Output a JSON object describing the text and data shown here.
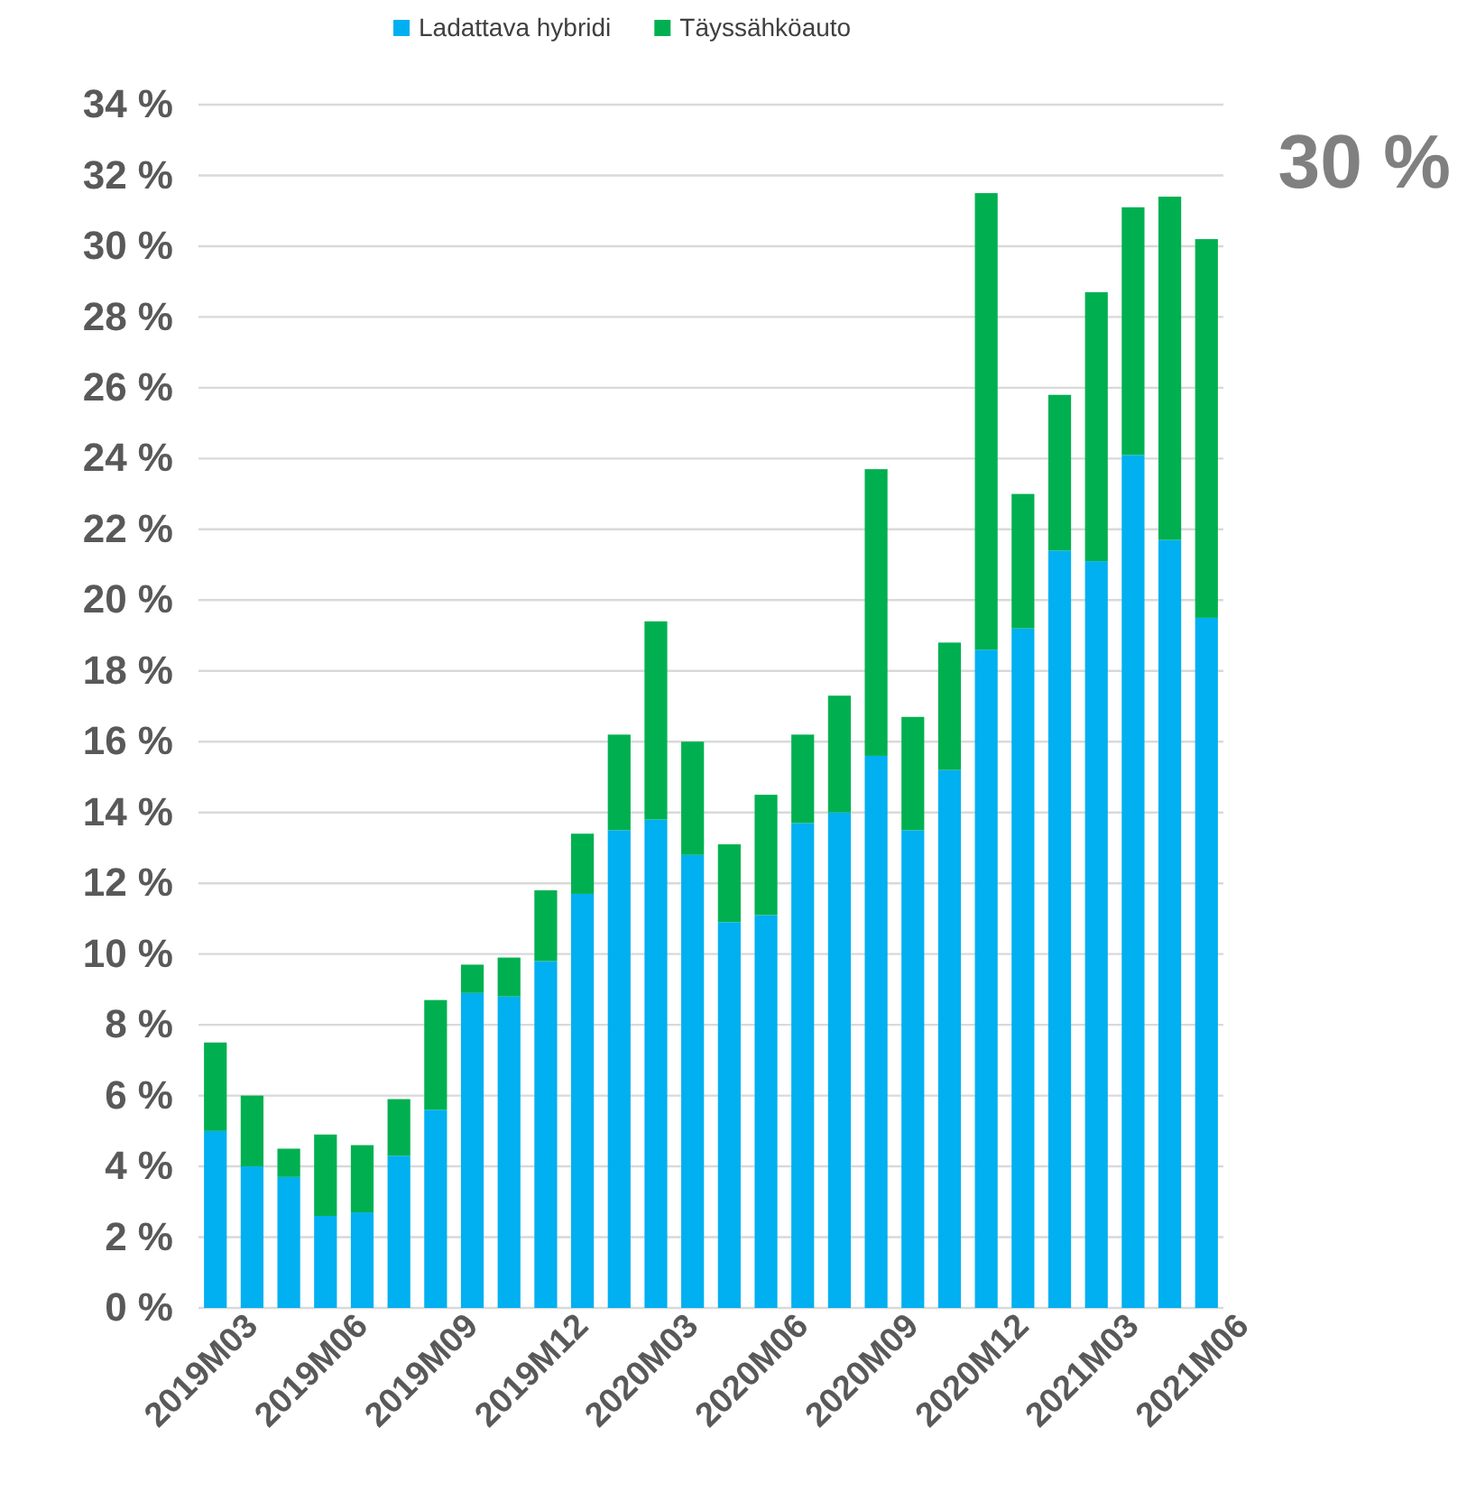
{
  "chart_data": {
    "type": "bar",
    "stacked": true,
    "legend": "top",
    "grid": "y",
    "categories": [
      "2019M03",
      null,
      null,
      "2019M06",
      null,
      null,
      "2019M09",
      null,
      null,
      "2019M12",
      null,
      null,
      "2020M03",
      null,
      null,
      "2020M06",
      null,
      null,
      "2020M09",
      null,
      null,
      "2020M12",
      null,
      null,
      "2021M03",
      null,
      null,
      "2021M06"
    ],
    "series": [
      {
        "name": "Ladattava hybridi",
        "color": "#00b0f0",
        "values": [
          5.0,
          4.0,
          3.7,
          2.6,
          2.7,
          4.3,
          5.6,
          8.9,
          8.8,
          9.8,
          11.7,
          13.5,
          13.8,
          12.8,
          10.9,
          11.1,
          13.7,
          14.0,
          15.6,
          13.5,
          15.2,
          18.6,
          19.2,
          21.4,
          21.1,
          24.1,
          21.7,
          19.5
        ]
      },
      {
        "name": "Täyssähköauto",
        "color": "#00b050",
        "values": [
          2.5,
          2.0,
          0.8,
          2.3,
          1.9,
          1.6,
          3.1,
          0.8,
          1.1,
          2.0,
          1.7,
          2.7,
          5.6,
          3.2,
          2.2,
          3.4,
          2.5,
          3.3,
          8.1,
          3.2,
          3.6,
          12.9,
          3.8,
          4.4,
          7.6,
          7.0,
          9.7,
          10.7
        ]
      }
    ],
    "ylim": [
      0,
      34
    ],
    "yticks": [
      {
        "value": 0,
        "label": "0 %"
      },
      {
        "value": 2,
        "label": "2 %"
      },
      {
        "value": 4,
        "label": "4 %"
      },
      {
        "value": 6,
        "label": "6 %"
      },
      {
        "value": 8,
        "label": "8 %"
      },
      {
        "value": 10,
        "label": "10 %"
      },
      {
        "value": 12,
        "label": "12 %"
      },
      {
        "value": 14,
        "label": "14 %"
      },
      {
        "value": 16,
        "label": "16 %"
      },
      {
        "value": 18,
        "label": "18 %"
      },
      {
        "value": 20,
        "label": "20 %"
      },
      {
        "value": 22,
        "label": "22 %"
      },
      {
        "value": 24,
        "label": "24 %"
      },
      {
        "value": 26,
        "label": "26 %"
      },
      {
        "value": 28,
        "label": "28 %"
      },
      {
        "value": 30,
        "label": "30 %"
      },
      {
        "value": 32,
        "label": "32 %"
      },
      {
        "value": 34,
        "label": "34 %"
      }
    ],
    "annotations": [
      "30 %"
    ]
  }
}
